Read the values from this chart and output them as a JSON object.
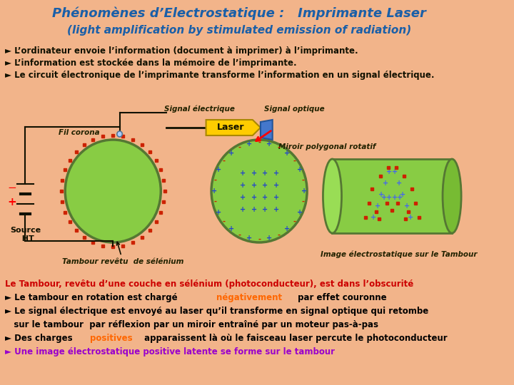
{
  "bg_color": "#F2B48A",
  "title_line1": "Phénomènes d’Electrostatique :   Imprimante Laser",
  "title_line2": "(light amplification by stimulated emission of radiation)",
  "title_color": "#1a5fa8",
  "bullets": [
    "► L’ordinateur envoie l’information (document à imprimer) à l’imprimante.",
    "► L’information est stockée dans la mémoire de l’imprimante.",
    "► Le circuit électronique de l’imprimante transforme l’information en un signal électrique."
  ],
  "signal_elec_label": "Signal électrique",
  "signal_opt_label": "Signal optique",
  "laser_label": "Laser",
  "fil_corona_label": "Fil corona",
  "source_ht_label": "Source\n  HT",
  "miroir_label": "Miroir polygonal rotatif",
  "tambour_label": "Tambour revêtu  de sélénium",
  "image_label": "Image électrostatique sur le Tambour",
  "bottom_lines": [
    {
      "parts": [
        {
          "text": "Le Tambour, revêtu d’une couche en sélénium (photoconducteur), est dans l’obscurité",
          "color": "#cc0000"
        }
      ]
    },
    {
      "parts": [
        {
          "text": "► Le tambour en rotation est chargé ",
          "color": "#000000"
        },
        {
          "text": "négativement",
          "color": "#ff6600"
        },
        {
          "text": " par effet couronne",
          "color": "#000000"
        }
      ]
    },
    {
      "parts": [
        {
          "text": "► Le signal électrique est envoyé au laser qu’il transforme en signal optique qui retombe",
          "color": "#000000"
        }
      ]
    },
    {
      "parts": [
        {
          "text": "   sur le tambour  par réflexion par un miroir entraîné par un moteur pas-à-pas",
          "color": "#000000"
        }
      ]
    },
    {
      "parts": [
        {
          "text": "► Des charges ",
          "color": "#000000"
        },
        {
          "text": "positives",
          "color": "#ff6600"
        },
        {
          "text": " apparaissent là où le faisceau laser percute le photoconducteur",
          "color": "#000000"
        }
      ]
    },
    {
      "parts": [
        {
          "text": "► Une image électrostatique positive latente se forme sur le tambour",
          "color": "#9900cc"
        }
      ]
    }
  ]
}
